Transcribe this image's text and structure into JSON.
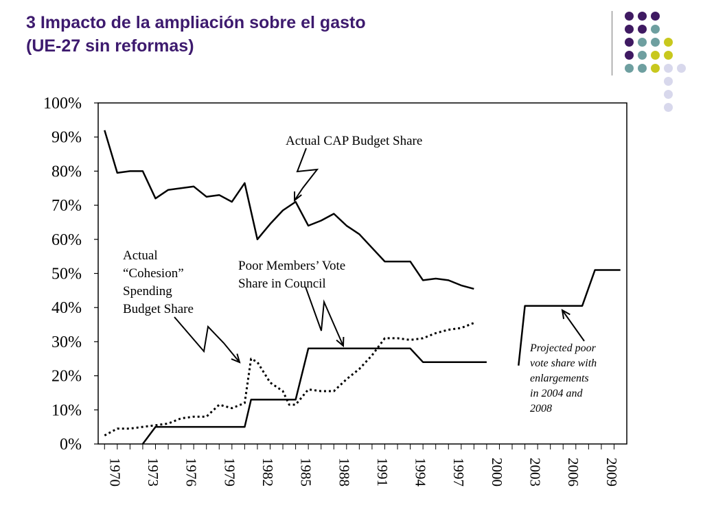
{
  "slide": {
    "title_line1": "3 Impacto de la ampliación sobre el gasto",
    "title_line2": "(UE-27 sin reformas)"
  },
  "decoration": {
    "colors": {
      "purple": "#3f1a62",
      "teal": "#6e9fa0",
      "lime": "#c8c81e",
      "lavender": "#d8d8ec"
    },
    "dots": [
      [
        "purple",
        "purple",
        "purple",
        null,
        null
      ],
      [
        "purple",
        "purple",
        "teal",
        null,
        null
      ],
      [
        "purple",
        "teal",
        "teal",
        "lime",
        null
      ],
      [
        "purple",
        "teal",
        "lime",
        "lime",
        null
      ],
      [
        "teal",
        "teal",
        "lime",
        "lavender",
        "lavender"
      ],
      [
        null,
        null,
        null,
        "lavender",
        null
      ],
      [
        null,
        null,
        null,
        "lavender",
        null
      ],
      [
        null,
        null,
        null,
        "lavender",
        null
      ]
    ]
  },
  "chart_data": {
    "type": "line",
    "title": "",
    "xlabel": "",
    "ylabel": "",
    "xlim": [
      1969.5,
      2011
    ],
    "ylim": [
      0,
      100
    ],
    "ytick_labels": [
      "0%",
      "10%",
      "20%",
      "30%",
      "40%",
      "50%",
      "60%",
      "70%",
      "80%",
      "90%",
      "100%"
    ],
    "xtick_labels": [
      "1970",
      "1973",
      "1976",
      "1979",
      "1982",
      "1985",
      "1988",
      "1991",
      "1994",
      "1997",
      "2000",
      "2003",
      "2006",
      "2009"
    ],
    "grid": false,
    "colors": {
      "line": "#000000",
      "frame": "#000000"
    },
    "series": [
      {
        "name": "Actual CAP Budget Share",
        "style": "solid",
        "points": [
          [
            1970,
            92
          ],
          [
            1971,
            79.5
          ],
          [
            1972,
            80
          ],
          [
            1973,
            80
          ],
          [
            1974,
            72
          ],
          [
            1975,
            74.5
          ],
          [
            1976,
            75
          ],
          [
            1977,
            75.5
          ],
          [
            1978,
            72.5
          ],
          [
            1979,
            73
          ],
          [
            1980,
            71
          ],
          [
            1981,
            76.5
          ],
          [
            1982,
            60
          ],
          [
            1983,
            64.5
          ],
          [
            1984,
            68.5
          ],
          [
            1985,
            71
          ],
          [
            1986,
            64
          ],
          [
            1987,
            65.5
          ],
          [
            1988,
            67.5
          ],
          [
            1989,
            64
          ],
          [
            1990,
            61.5
          ],
          [
            1991,
            57.5
          ],
          [
            1992,
            53.5
          ],
          [
            1993,
            53.5
          ],
          [
            1994,
            53.5
          ],
          [
            1995,
            48
          ],
          [
            1996,
            48.5
          ],
          [
            1997,
            48
          ],
          [
            1998,
            46.5
          ],
          [
            1999,
            45.5
          ]
        ]
      },
      {
        "name": "Actual “Cohesion” Spending Budget Share",
        "style": "dotted",
        "points": [
          [
            1970,
            2.5
          ],
          [
            1971,
            4.5
          ],
          [
            1972,
            4.5
          ],
          [
            1973,
            5
          ],
          [
            1974,
            5.5
          ],
          [
            1975,
            6
          ],
          [
            1976,
            7.5
          ],
          [
            1977,
            8
          ],
          [
            1978,
            8
          ],
          [
            1979,
            11.5
          ],
          [
            1980,
            10.5
          ],
          [
            1981,
            12
          ],
          [
            1981.5,
            25
          ],
          [
            1982,
            24
          ],
          [
            1983,
            18
          ],
          [
            1984,
            15.5
          ],
          [
            1984.5,
            11.5
          ],
          [
            1985,
            11.5
          ],
          [
            1986,
            16
          ],
          [
            1987,
            15.5
          ],
          [
            1988,
            15.5
          ],
          [
            1989,
            19
          ],
          [
            1990,
            22
          ],
          [
            1991,
            26
          ],
          [
            1992,
            31
          ],
          [
            1993,
            31
          ],
          [
            1994,
            30.5
          ],
          [
            1995,
            31
          ],
          [
            1996,
            32.5
          ],
          [
            1997,
            33.5
          ],
          [
            1998,
            34
          ],
          [
            1999,
            35.5
          ]
        ]
      },
      {
        "name": "Poor Members’ Vote Share in Council",
        "style": "solid",
        "points": [
          [
            1973,
            0
          ],
          [
            1974,
            5
          ],
          [
            1981,
            5
          ],
          [
            1981.5,
            13
          ],
          [
            1985,
            13
          ],
          [
            1986,
            28
          ],
          [
            1994,
            28
          ],
          [
            1995,
            24
          ],
          [
            2000,
            24
          ]
        ]
      },
      {
        "name": "Projected poor vote share with enlargements in 2004 and 2008",
        "style": "solid",
        "points": [
          [
            2002.5,
            23
          ],
          [
            2003,
            40.5
          ],
          [
            2007.5,
            40.5
          ],
          [
            2008.5,
            51
          ],
          [
            2010.5,
            51
          ]
        ]
      }
    ],
    "annotations": [
      {
        "text_lines": [
          "Actual CAP Budget Share"
        ],
        "style": "upright"
      },
      {
        "text_lines": [
          "Actual",
          "“Cohesion”",
          "Spending",
          "Budget Share"
        ],
        "style": "upright"
      },
      {
        "text_lines": [
          "Poor Members’ Vote",
          "Share in Council"
        ],
        "style": "upright"
      },
      {
        "text_lines": [
          "Projected poor",
          "vote share with",
          "enlargements",
          "in 2004 and",
          "2008"
        ],
        "style": "italic"
      }
    ]
  }
}
